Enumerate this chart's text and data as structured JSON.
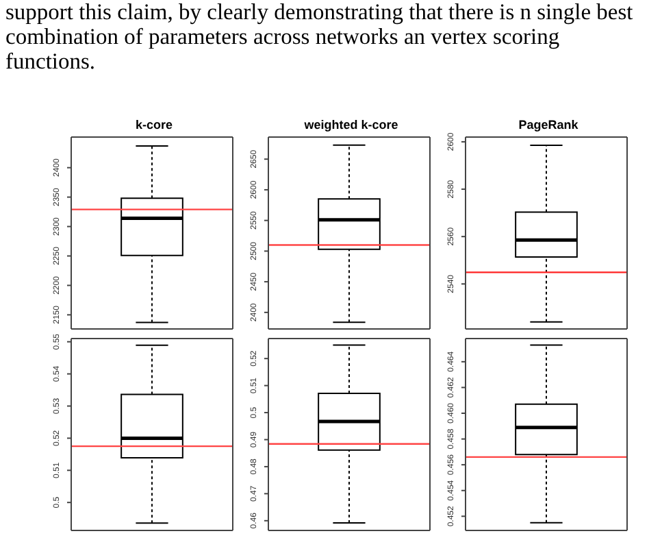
{
  "chart_data": [
    {
      "type": "box",
      "title": "k-core",
      "annotations": [
        "support this claim, by clearly demonstrating that there is n single best combination of parameters across networks an vertex scoring functions."
      ],
      "categories": [
        null
      ],
      "boxes": [
        {
          "low": 2137,
          "q1": 2251,
          "median": 2314,
          "q3": 2348,
          "high": 2437
        }
      ],
      "ylim": [
        2126,
        2452
      ],
      "yticks": [
        2150,
        2200,
        2250,
        2300,
        2350,
        2400
      ],
      "ref_lines": [
        {
          "axis": "y",
          "value": 2329,
          "color": "#ff4444"
        }
      ]
    },
    {
      "type": "box",
      "title": "weighted k-core",
      "categories": [
        null
      ],
      "boxes": [
        {
          "low": 2384,
          "q1": 2503,
          "median": 2551,
          "q3": 2585,
          "high": 2673
        }
      ],
      "ylim": [
        2373,
        2686
      ],
      "yticks": [
        2400,
        2450,
        2500,
        2550,
        2600,
        2650
      ],
      "ref_lines": [
        {
          "axis": "y",
          "value": 2510,
          "color": "#ff4444"
        }
      ]
    },
    {
      "type": "box",
      "title": "PageRank",
      "categories": [
        null
      ],
      "boxes": [
        {
          "low": 2524,
          "q1": 2551.4,
          "median": 2558.5,
          "q3": 2570.3,
          "high": 2598.5
        }
      ],
      "ylim": [
        2521,
        2602
      ],
      "yticks": [
        2540,
        2560,
        2580,
        2600
      ],
      "ref_lines": [
        {
          "axis": "y",
          "value": 2544.9,
          "color": "#ff2222"
        }
      ]
    },
    {
      "type": "box",
      "categories": [
        null
      ],
      "boxes": [
        {
          "low": 0.4936,
          "q1": 0.5139,
          "median": 0.52,
          "q3": 0.5336,
          "high": 0.5489
        }
      ],
      "ylim": [
        0.4913,
        0.551
      ],
      "yticks": [
        0.5,
        0.51,
        0.52,
        0.53,
        0.54,
        0.55
      ],
      "ref_lines": [
        {
          "axis": "y",
          "value": 0.5175,
          "color": "#ff4444"
        }
      ]
    },
    {
      "type": "box",
      "categories": [
        null
      ],
      "boxes": [
        {
          "low": 0.4592,
          "q1": 0.4861,
          "median": 0.4967,
          "q3": 0.5071,
          "high": 0.525
        }
      ],
      "ylim": [
        0.4564,
        0.5274
      ],
      "yticks": [
        0.46,
        0.47,
        0.48,
        0.49,
        0.5,
        0.51,
        0.52
      ],
      "ref_lines": [
        {
          "axis": "y",
          "value": 0.4884,
          "color": "#ff4444"
        }
      ]
    },
    {
      "type": "box",
      "categories": [
        null
      ],
      "boxes": [
        {
          "low": 0.4515,
          "q1": 0.4568,
          "median": 0.4589,
          "q3": 0.4607,
          "high": 0.4653
        }
      ],
      "ylim": [
        0.4509,
        0.4658
      ],
      "yticks": [
        0.452,
        0.454,
        0.456,
        0.458,
        {
          "value": 0.46,
          "label": "0.460"
        },
        0.462,
        0.464
      ],
      "ref_lines": [
        {
          "axis": "y",
          "value": 0.4566,
          "color": "#ff4444"
        }
      ]
    }
  ]
}
